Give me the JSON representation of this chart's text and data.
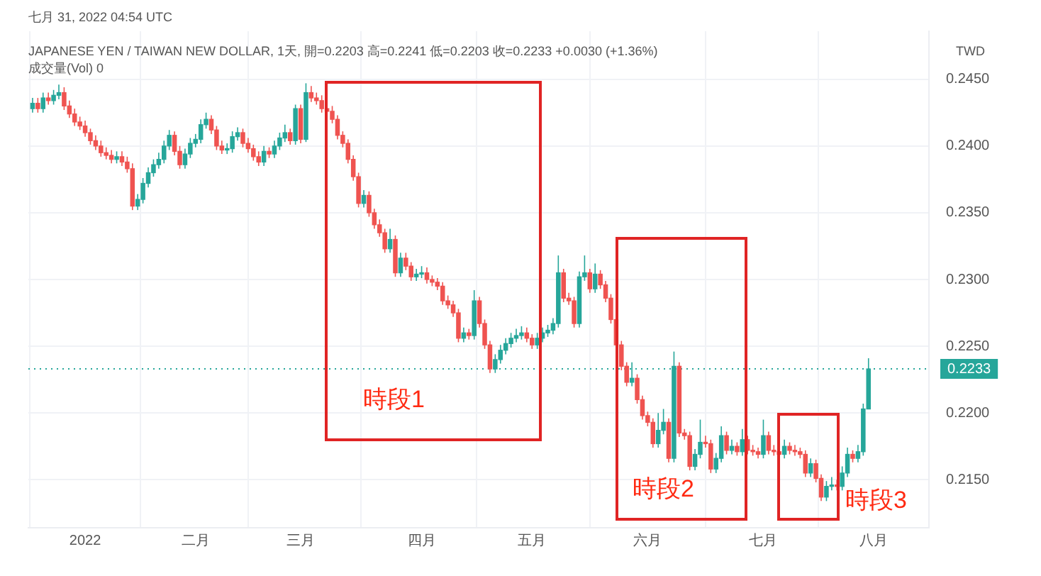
{
  "chart_data": {
    "type": "candlestick",
    "title": "JAPANESE YEN / TAIWAN NEW DOLLAR, 1天, 開=0.2203 高=0.2241 低=0.2203 收=0.2233 +0.0030 (+1.36%)",
    "subtitle": "七月 31, 2022 04:54 UTC",
    "ylabel": "TWD",
    "annotations": [
      "成交量(Vol) 0",
      "時段1",
      "時段2",
      "時段3"
    ],
    "categories": [
      null,
      null,
      null,
      null,
      null,
      null,
      null,
      null,
      null,
      null,
      "2022",
      null,
      null,
      null,
      null,
      null,
      null,
      null,
      null,
      null,
      null,
      null,
      null,
      null,
      null,
      null,
      null,
      null,
      null,
      null,
      null,
      "二月",
      null,
      null,
      null,
      null,
      null,
      null,
      null,
      null,
      null,
      null,
      null,
      null,
      null,
      null,
      null,
      null,
      null,
      null,
      null,
      "三月",
      null,
      null,
      null,
      null,
      null,
      null,
      null,
      null,
      null,
      null,
      null,
      null,
      null,
      null,
      null,
      null,
      null,
      null,
      null,
      null,
      null,
      null,
      "四月",
      null,
      null,
      null,
      null,
      null,
      null,
      null,
      null,
      null,
      null,
      null,
      null,
      null,
      null,
      null,
      null,
      null,
      null,
      null,
      null,
      "五月",
      null,
      null,
      null,
      null,
      null,
      null,
      null,
      null,
      null,
      null,
      null,
      null,
      null,
      null,
      null,
      null,
      null,
      null,
      null,
      null,
      null,
      "六月",
      null,
      null,
      null,
      null,
      null,
      null,
      null,
      null,
      null,
      null,
      null,
      null,
      null,
      null,
      null,
      null,
      null,
      null,
      null,
      null,
      null,
      "七月",
      null,
      null,
      null,
      null,
      null,
      null,
      null,
      null,
      null,
      null,
      null,
      null,
      null,
      null,
      null,
      null,
      null,
      null,
      null,
      null,
      "八月"
    ],
    "ohlc": [
      [
        0.2428,
        0.2436,
        0.2425,
        0.2432
      ],
      [
        0.2432,
        0.2436,
        0.2425,
        0.2428
      ],
      [
        0.2428,
        0.244,
        0.2425,
        0.2436
      ],
      [
        0.2436,
        0.244,
        0.2431,
        0.2434
      ],
      [
        0.2434,
        0.2442,
        0.2431,
        0.2438
      ],
      [
        0.2438,
        0.2446,
        0.2435,
        0.244
      ],
      [
        0.244,
        0.2444,
        0.2427,
        0.243
      ],
      [
        0.243,
        0.2434,
        0.2421,
        0.2424
      ],
      [
        0.2424,
        0.2428,
        0.2415,
        0.2418
      ],
      [
        0.2418,
        0.2422,
        0.2412,
        0.2415
      ],
      [
        0.2415,
        0.2419,
        0.2407,
        0.241
      ],
      [
        0.241,
        0.2413,
        0.2401,
        0.2404
      ],
      [
        0.2404,
        0.2408,
        0.2397,
        0.24
      ],
      [
        0.24,
        0.2404,
        0.2392,
        0.2395
      ],
      [
        0.2395,
        0.2399,
        0.239,
        0.2393
      ],
      [
        0.2393,
        0.2397,
        0.2387,
        0.239
      ],
      [
        0.239,
        0.2396,
        0.2387,
        0.2392
      ],
      [
        0.2392,
        0.2396,
        0.2385,
        0.2388
      ],
      [
        0.2388,
        0.2392,
        0.238,
        0.2383
      ],
      [
        0.2383,
        0.2387,
        0.2352,
        0.2355
      ],
      [
        0.2355,
        0.2364,
        0.2352,
        0.236
      ],
      [
        0.236,
        0.2376,
        0.2357,
        0.2372
      ],
      [
        0.2372,
        0.2384,
        0.2369,
        0.238
      ],
      [
        0.238,
        0.239,
        0.2377,
        0.2386
      ],
      [
        0.2386,
        0.2395,
        0.2383,
        0.239
      ],
      [
        0.239,
        0.2404,
        0.2387,
        0.24
      ],
      [
        0.24,
        0.2412,
        0.2397,
        0.2408
      ],
      [
        0.2408,
        0.2411,
        0.2393,
        0.2396
      ],
      [
        0.2396,
        0.24,
        0.2383,
        0.2386
      ],
      [
        0.2386,
        0.2398,
        0.2383,
        0.2394
      ],
      [
        0.2394,
        0.2406,
        0.2391,
        0.2402
      ],
      [
        0.2402,
        0.2409,
        0.2399,
        0.2405
      ],
      [
        0.2405,
        0.242,
        0.2402,
        0.2416
      ],
      [
        0.2416,
        0.2425,
        0.2413,
        0.242
      ],
      [
        0.242,
        0.2423,
        0.2409,
        0.2412
      ],
      [
        0.2412,
        0.2415,
        0.2397,
        0.24
      ],
      [
        0.24,
        0.2404,
        0.2394,
        0.2397
      ],
      [
        0.2397,
        0.2402,
        0.2394,
        0.2398
      ],
      [
        0.2398,
        0.2411,
        0.2395,
        0.2407
      ],
      [
        0.2407,
        0.2414,
        0.2404,
        0.241
      ],
      [
        0.241,
        0.2413,
        0.2399,
        0.2402
      ],
      [
        0.2402,
        0.2406,
        0.2395,
        0.2398
      ],
      [
        0.2398,
        0.2401,
        0.2389,
        0.2392
      ],
      [
        0.2392,
        0.2396,
        0.2385,
        0.2388
      ],
      [
        0.2388,
        0.24,
        0.2385,
        0.2396
      ],
      [
        0.2396,
        0.2399,
        0.2391,
        0.2394
      ],
      [
        0.2394,
        0.2404,
        0.2391,
        0.24
      ],
      [
        0.24,
        0.241,
        0.2397,
        0.2406
      ],
      [
        0.2406,
        0.2416,
        0.2403,
        0.241
      ],
      [
        0.241,
        0.2413,
        0.2401,
        0.2404
      ],
      [
        0.2404,
        0.2431,
        0.2401,
        0.2428
      ],
      [
        0.2428,
        0.2431,
        0.2402,
        0.2405
      ],
      [
        0.2405,
        0.2447,
        0.2403,
        0.244
      ],
      [
        0.244,
        0.2445,
        0.2433,
        0.2436
      ],
      [
        0.2436,
        0.244,
        0.2431,
        0.2434
      ],
      [
        0.2434,
        0.2438,
        0.2425,
        0.2428
      ],
      [
        0.2428,
        0.2432,
        0.2423,
        0.2426
      ],
      [
        0.2426,
        0.243,
        0.2417,
        0.242
      ],
      [
        0.242,
        0.2423,
        0.2405,
        0.2408
      ],
      [
        0.2408,
        0.2411,
        0.2399,
        0.2402
      ],
      [
        0.2402,
        0.2405,
        0.2387,
        0.239
      ],
      [
        0.239,
        0.2393,
        0.2374,
        0.2377
      ],
      [
        0.2377,
        0.238,
        0.2354,
        0.2357
      ],
      [
        0.2357,
        0.2367,
        0.2354,
        0.2363
      ],
      [
        0.2363,
        0.2366,
        0.2347,
        0.235
      ],
      [
        0.235,
        0.2353,
        0.2338,
        0.2341
      ],
      [
        0.2341,
        0.2345,
        0.2332,
        0.2335
      ],
      [
        0.2335,
        0.2338,
        0.232,
        0.2323
      ],
      [
        0.2323,
        0.2338,
        0.232,
        0.233
      ],
      [
        0.233,
        0.2333,
        0.2302,
        0.2305
      ],
      [
        0.2305,
        0.232,
        0.2302,
        0.2316
      ],
      [
        0.2316,
        0.232,
        0.2307,
        0.231
      ],
      [
        0.231,
        0.2313,
        0.2299,
        0.2302
      ],
      [
        0.2302,
        0.2308,
        0.2299,
        0.2304
      ],
      [
        0.2304,
        0.231,
        0.2301,
        0.2305
      ],
      [
        0.2305,
        0.2309,
        0.2297,
        0.23
      ],
      [
        0.23,
        0.2303,
        0.2295,
        0.2298
      ],
      [
        0.2298,
        0.2301,
        0.2292,
        0.2295
      ],
      [
        0.2295,
        0.2298,
        0.2281,
        0.2284
      ],
      [
        0.2284,
        0.2288,
        0.2278,
        0.2281
      ],
      [
        0.2281,
        0.2284,
        0.2272,
        0.2275
      ],
      [
        0.2275,
        0.2278,
        0.2253,
        0.2256
      ],
      [
        0.2256,
        0.2264,
        0.2253,
        0.226
      ],
      [
        0.226,
        0.2263,
        0.2255,
        0.2258
      ],
      [
        0.2258,
        0.2292,
        0.2255,
        0.2284
      ],
      [
        0.2284,
        0.2287,
        0.2264,
        0.2267
      ],
      [
        0.2267,
        0.227,
        0.2248,
        0.2251
      ],
      [
        0.2251,
        0.2254,
        0.223,
        0.2233
      ],
      [
        0.2233,
        0.2244,
        0.223,
        0.224
      ],
      [
        0.224,
        0.2251,
        0.2237,
        0.2247
      ],
      [
        0.2247,
        0.2256,
        0.2244,
        0.2252
      ],
      [
        0.2252,
        0.226,
        0.2249,
        0.2256
      ],
      [
        0.2256,
        0.2263,
        0.2253,
        0.2258
      ],
      [
        0.2258,
        0.2265,
        0.2255,
        0.226
      ],
      [
        0.226,
        0.2264,
        0.2253,
        0.2256
      ],
      [
        0.2256,
        0.2259,
        0.2248,
        0.2251
      ],
      [
        0.2251,
        0.226,
        0.2248,
        0.2256
      ],
      [
        0.2256,
        0.2264,
        0.2253,
        0.226
      ],
      [
        0.226,
        0.2266,
        0.2257,
        0.2262
      ],
      [
        0.2262,
        0.2271,
        0.2259,
        0.2267
      ],
      [
        0.2267,
        0.2318,
        0.2264,
        0.2305
      ],
      [
        0.2305,
        0.2308,
        0.2283,
        0.2286
      ],
      [
        0.2286,
        0.229,
        0.2281,
        0.2284
      ],
      [
        0.2284,
        0.2287,
        0.2264,
        0.2267
      ],
      [
        0.2267,
        0.2306,
        0.2264,
        0.2302
      ],
      [
        0.2302,
        0.2318,
        0.2299,
        0.2305
      ],
      [
        0.2305,
        0.2308,
        0.229,
        0.2293
      ],
      [
        0.2293,
        0.2312,
        0.229,
        0.2304
      ],
      [
        0.2304,
        0.2307,
        0.2293,
        0.2296
      ],
      [
        0.2296,
        0.2299,
        0.2283,
        0.2286
      ],
      [
        0.2286,
        0.2289,
        0.2267,
        0.227
      ],
      [
        0.227,
        0.2273,
        0.2248,
        0.2251
      ],
      [
        0.2251,
        0.2254,
        0.2232,
        0.2235
      ],
      [
        0.2235,
        0.2238,
        0.222,
        0.2223
      ],
      [
        0.2223,
        0.2238,
        0.222,
        0.2226
      ],
      [
        0.2226,
        0.2229,
        0.2207,
        0.221
      ],
      [
        0.221,
        0.2213,
        0.2195,
        0.2198
      ],
      [
        0.2198,
        0.2201,
        0.219,
        0.2193
      ],
      [
        0.2193,
        0.2196,
        0.2174,
        0.2177
      ],
      [
        0.2177,
        0.22,
        0.2174,
        0.2187
      ],
      [
        0.2187,
        0.2203,
        0.2184,
        0.2193
      ],
      [
        0.2193,
        0.2196,
        0.2163,
        0.2166
      ],
      [
        0.2166,
        0.2246,
        0.2163,
        0.2235
      ],
      [
        0.2235,
        0.2238,
        0.2182,
        0.2185
      ],
      [
        0.2185,
        0.2188,
        0.218,
        0.2183
      ],
      [
        0.2183,
        0.2186,
        0.2157,
        0.216
      ],
      [
        0.216,
        0.2173,
        0.2157,
        0.2169
      ],
      [
        0.2169,
        0.2195,
        0.2166,
        0.2178
      ],
      [
        0.2178,
        0.2183,
        0.2174,
        0.2177
      ],
      [
        0.2177,
        0.218,
        0.2155,
        0.2158
      ],
      [
        0.2158,
        0.217,
        0.2155,
        0.2166
      ],
      [
        0.2166,
        0.219,
        0.2163,
        0.2183
      ],
      [
        0.2183,
        0.2186,
        0.2169,
        0.2172
      ],
      [
        0.2172,
        0.218,
        0.2169,
        0.2175
      ],
      [
        0.2175,
        0.2178,
        0.2168,
        0.2171
      ],
      [
        0.2171,
        0.2188,
        0.2168,
        0.218
      ],
      [
        0.218,
        0.2183,
        0.2169,
        0.2172
      ],
      [
        0.2172,
        0.2176,
        0.2168,
        0.2171
      ],
      [
        0.2171,
        0.2174,
        0.2166,
        0.2169
      ],
      [
        0.2169,
        0.2195,
        0.2166,
        0.2183
      ],
      [
        0.2183,
        0.2186,
        0.2169,
        0.2172
      ],
      [
        0.2172,
        0.2176,
        0.2168,
        0.2171
      ],
      [
        0.2171,
        0.2174,
        0.2166,
        0.2169
      ],
      [
        0.2169,
        0.218,
        0.2166,
        0.2175
      ],
      [
        0.2175,
        0.2178,
        0.2169,
        0.2172
      ],
      [
        0.2172,
        0.2176,
        0.2168,
        0.2171
      ],
      [
        0.2171,
        0.2174,
        0.2166,
        0.2169
      ],
      [
        0.2169,
        0.2172,
        0.2152,
        0.2155
      ],
      [
        0.2155,
        0.2166,
        0.2152,
        0.2162
      ],
      [
        0.2162,
        0.2165,
        0.2148,
        0.2151
      ],
      [
        0.2151,
        0.2154,
        0.2134,
        0.2137
      ],
      [
        0.2137,
        0.2149,
        0.2134,
        0.2145
      ],
      [
        0.2145,
        0.2152,
        0.2142,
        0.2146
      ],
      [
        0.2146,
        0.215,
        0.2142,
        0.2145
      ],
      [
        0.2145,
        0.216,
        0.2142,
        0.2155
      ],
      [
        0.2155,
        0.2174,
        0.2152,
        0.2169
      ],
      [
        0.2169,
        0.2172,
        0.2163,
        0.2166
      ],
      [
        0.2166,
        0.2176,
        0.2163,
        0.2171
      ],
      [
        0.2171,
        0.2207,
        0.2168,
        0.2203
      ],
      [
        0.2203,
        0.2241,
        0.2203,
        0.2233
      ],
      null
    ],
    "ylim": [
      0.2114,
      0.2486
    ],
    "yticks": [
      {
        "value": 0.215,
        "label": "0.2150"
      },
      {
        "value": 0.22,
        "label": "0.2200"
      },
      {
        "value": 0.225,
        "label": "0.2250"
      },
      {
        "value": 0.23,
        "label": "0.2300"
      },
      {
        "value": 0.235,
        "label": "0.2350"
      },
      {
        "value": 0.24,
        "label": "0.2400"
      },
      {
        "value": 0.245,
        "label": "0.2450"
      }
    ],
    "ref_lines": [
      {
        "axis": "y",
        "value": 0.2233,
        "label": "0.2233",
        "color": "#26a69a"
      }
    ],
    "grid": true,
    "legend": false
  }
}
